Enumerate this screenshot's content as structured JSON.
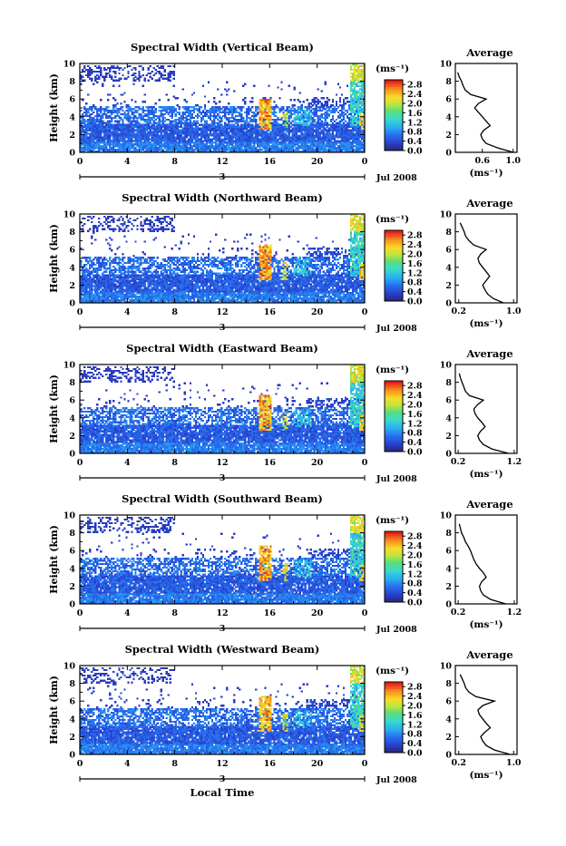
{
  "figure": {
    "x_axis_label": "Local Time",
    "date_label": "Jul 2008",
    "colorbar_unit": "(ms⁻¹)",
    "colorbar_ticks": [
      "2.8",
      "2.4",
      "2.0",
      "1.6",
      "1.2",
      "0.8",
      "0.4",
      "0.0"
    ],
    "time_ticks": [
      "0",
      "4",
      "8",
      "12",
      "16",
      "20",
      "0"
    ],
    "day_marker": "3",
    "height_ticks": [
      "10",
      "8",
      "6",
      "4",
      "2",
      "0"
    ],
    "height_label": "Height (km)",
    "average_title": "Average",
    "average_unit": "(ms⁻¹)"
  },
  "chart_data": [
    {
      "type": "heatmap",
      "title": "Spectral Width (Vertical Beam)",
      "xlabel": "Local Time",
      "ylabel": "Height (km)",
      "xlim": [
        0,
        24
      ],
      "ylim": [
        0,
        10
      ],
      "colorbar_range": [
        0.0,
        3.0
      ],
      "average_profile": {
        "type": "line",
        "title": "Average",
        "xlabel": "(ms⁻¹)",
        "xticks": [
          "0.6",
          "1.0"
        ],
        "xlim": [
          0.25,
          1.05
        ],
        "heights_km": [
          0,
          0.5,
          1,
          1.5,
          2,
          2.5,
          3,
          3.5,
          4,
          4.5,
          5,
          5.5,
          6,
          6.5,
          7,
          7.5,
          8,
          8.5,
          9
        ],
        "values": [
          1.0,
          0.8,
          0.65,
          0.6,
          0.58,
          0.62,
          0.7,
          0.65,
          0.6,
          0.55,
          0.5,
          0.55,
          0.65,
          0.45,
          0.38,
          0.35,
          0.33,
          0.3,
          0.28
        ]
      }
    },
    {
      "type": "heatmap",
      "title": "Spectral Width (Northward Beam)",
      "xlabel": "Local Time",
      "ylabel": "Height (km)",
      "xlim": [
        0,
        24
      ],
      "ylim": [
        0,
        10
      ],
      "colorbar_range": [
        0.0,
        3.0
      ],
      "average_profile": {
        "type": "line",
        "title": "Average",
        "xlabel": "(ms⁻¹)",
        "xticks": [
          "0.2",
          "1.0"
        ],
        "xlim": [
          0.15,
          1.05
        ],
        "heights_km": [
          0,
          0.5,
          1,
          1.5,
          2,
          2.5,
          3,
          3.5,
          4,
          4.5,
          5,
          5.5,
          6,
          6.5,
          7,
          7.5,
          8,
          8.5,
          9
        ],
        "values": [
          0.85,
          0.7,
          0.62,
          0.58,
          0.55,
          0.6,
          0.65,
          0.6,
          0.55,
          0.5,
          0.48,
          0.52,
          0.6,
          0.42,
          0.35,
          0.3,
          0.28,
          0.25,
          0.22
        ]
      }
    },
    {
      "type": "heatmap",
      "title": "Spectral Width (Eastward Beam)",
      "xlabel": "Local Time",
      "ylabel": "Height (km)",
      "xlim": [
        0,
        24
      ],
      "ylim": [
        0,
        10
      ],
      "colorbar_range": [
        0.0,
        3.0
      ],
      "average_profile": {
        "type": "line",
        "title": "Average",
        "xlabel": "(ms⁻¹)",
        "xticks": [
          "0.2",
          "1.2"
        ],
        "xlim": [
          0.15,
          1.25
        ],
        "heights_km": [
          0,
          0.5,
          1,
          1.5,
          2,
          2.5,
          3,
          3.5,
          4,
          4.5,
          5,
          5.5,
          6,
          6.5,
          7,
          7.5,
          8,
          8.5,
          9
        ],
        "values": [
          1.1,
          0.8,
          0.65,
          0.58,
          0.55,
          0.6,
          0.68,
          0.62,
          0.55,
          0.5,
          0.48,
          0.55,
          0.65,
          0.4,
          0.33,
          0.3,
          0.27,
          0.24,
          0.22
        ]
      }
    },
    {
      "type": "heatmap",
      "title": "Spectral Width (Southward Beam)",
      "xlabel": "Local Time",
      "ylabel": "Height (km)",
      "xlim": [
        0,
        24
      ],
      "ylim": [
        0,
        10
      ],
      "colorbar_range": [
        0.0,
        3.0
      ],
      "average_profile": {
        "type": "line",
        "title": "Average",
        "xlabel": "(ms⁻¹)",
        "xticks": [
          "0.2",
          "1.2"
        ],
        "xlim": [
          0.15,
          1.25
        ],
        "heights_km": [
          0,
          0.5,
          1,
          1.5,
          2,
          2.5,
          3,
          3.5,
          4,
          4.5,
          5,
          5.5,
          6,
          6.5,
          7,
          7.5,
          8,
          8.5,
          9
        ],
        "values": [
          1.05,
          0.78,
          0.65,
          0.6,
          0.58,
          0.62,
          0.7,
          0.65,
          0.58,
          0.52,
          0.48,
          0.45,
          0.42,
          0.38,
          0.33,
          0.3,
          0.26,
          0.24,
          0.22
        ]
      }
    },
    {
      "type": "heatmap",
      "title": "Spectral Width (Westward Beam)",
      "xlabel": "Local Time",
      "ylabel": "Height (km)",
      "xlim": [
        0,
        24
      ],
      "ylim": [
        0,
        10
      ],
      "colorbar_range": [
        0.0,
        3.0
      ],
      "average_profile": {
        "type": "line",
        "title": "Average",
        "xlabel": "(ms⁻¹)",
        "xticks": [
          "0.2",
          "1.0"
        ],
        "xlim": [
          0.15,
          1.05
        ],
        "heights_km": [
          0,
          0.5,
          1,
          1.5,
          2,
          2.5,
          3,
          3.5,
          4,
          4.5,
          5,
          5.5,
          6,
          6.5,
          7,
          7.5,
          8,
          8.5,
          9
        ],
        "values": [
          0.95,
          0.72,
          0.6,
          0.55,
          0.52,
          0.58,
          0.66,
          0.6,
          0.55,
          0.5,
          0.48,
          0.55,
          0.72,
          0.45,
          0.35,
          0.3,
          0.28,
          0.25,
          0.22
        ]
      }
    }
  ]
}
